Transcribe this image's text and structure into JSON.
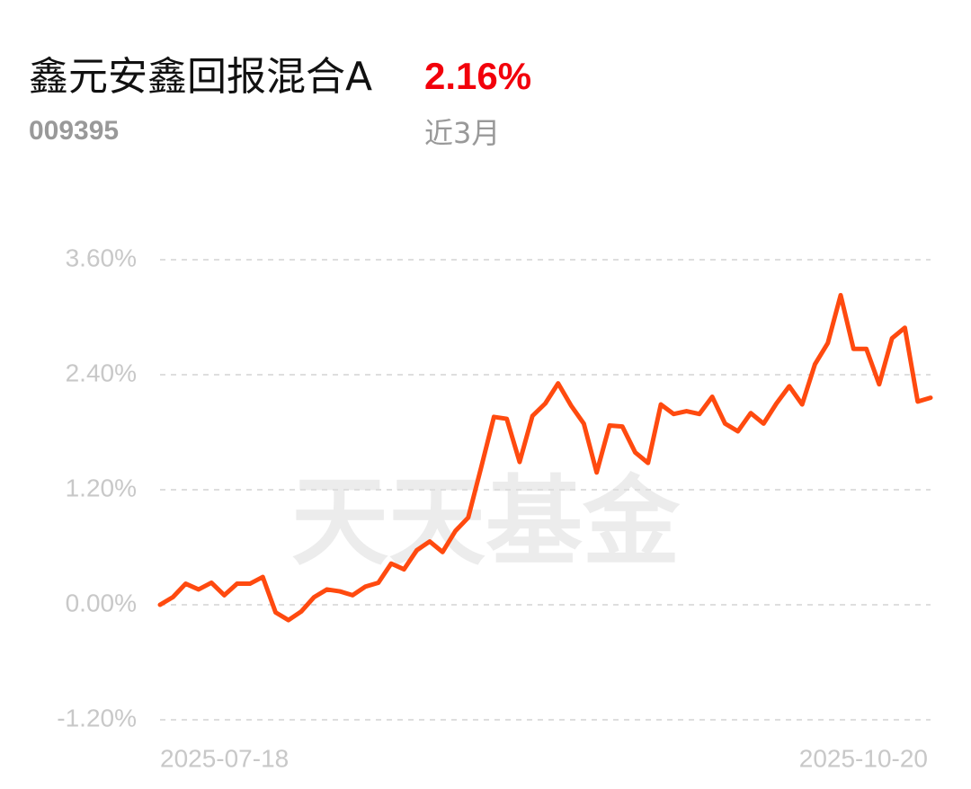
{
  "chart_data": {
    "type": "line",
    "title": "鑫元安鑫回报混合A",
    "code": "009395",
    "return_label": "2.16%",
    "period": "近3月",
    "watermark": "天天基金",
    "categories": [
      "2025-07-18",
      null,
      null,
      null,
      null,
      null,
      null,
      null,
      null,
      null,
      null,
      null,
      null,
      null,
      null,
      null,
      null,
      null,
      null,
      null,
      null,
      null,
      null,
      null,
      null,
      null,
      null,
      null,
      null,
      null,
      null,
      null,
      null,
      null,
      null,
      null,
      null,
      null,
      null,
      null,
      null,
      null,
      null,
      null,
      null,
      null,
      null,
      null,
      null,
      null,
      null,
      null,
      null,
      null,
      null,
      null,
      null,
      null,
      null,
      null,
      "2025-10-20"
    ],
    "series": [
      {
        "name": "鑫元安鑫回报混合A",
        "color": "#ff4a0f",
        "values": [
          0,
          0.08,
          0.22,
          0.16,
          0.23,
          0.1,
          0.22,
          0.22,
          0.29,
          -0.08,
          -0.16,
          -0.07,
          0.08,
          0.16,
          0.14,
          0.1,
          0.19,
          0.23,
          0.43,
          0.37,
          0.57,
          0.66,
          0.55,
          0.77,
          0.91,
          1.43,
          1.96,
          1.94,
          1.49,
          1.97,
          2.1,
          2.31,
          2.08,
          1.89,
          1.38,
          1.87,
          1.86,
          1.59,
          1.48,
          2.09,
          1.99,
          2.02,
          1.99,
          2.17,
          1.89,
          1.81,
          2.0,
          1.89,
          2.1,
          2.28,
          2.09,
          2.51,
          2.73,
          3.23,
          2.67,
          2.67,
          2.3,
          2.78,
          2.89,
          2.12,
          2.16
        ]
      }
    ],
    "ylim": [
      -1.2,
      3.6
    ],
    "yticks": [
      {
        "value": -1.2,
        "label": "-1.20%"
      },
      {
        "value": 0,
        "label": "0.00%"
      },
      {
        "value": 1.2,
        "label": "1.20%"
      },
      {
        "value": 2.4,
        "label": "2.40%"
      },
      {
        "value": 3.6,
        "label": "3.60%"
      }
    ],
    "grid": true
  }
}
